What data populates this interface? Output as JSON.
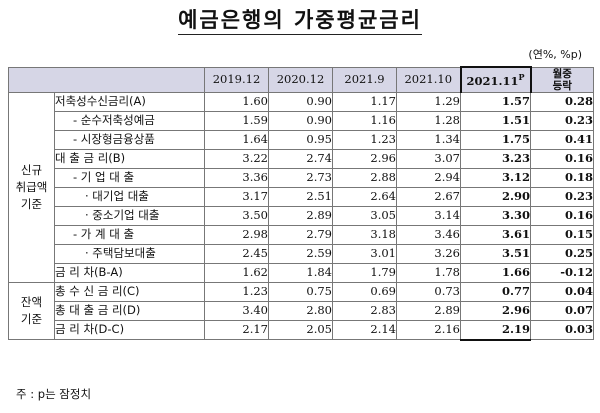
{
  "title": "예금은행의 가중평균금리",
  "unit": "(연%, %p)",
  "headers": {
    "c1": "2019.12",
    "c2": "2020.12",
    "c3": "2021.9",
    "c4": "2021.10",
    "c5": "2021.11",
    "c5_sup": "P",
    "change_line1": "월중",
    "change_line2": "등락"
  },
  "groups": {
    "new": [
      "신규",
      "취급액",
      "기준"
    ],
    "bal": [
      "잔액",
      "기준"
    ]
  },
  "rows": [
    {
      "label": "저축성수신금리(A)",
      "v": [
        "1.60",
        "0.90",
        "1.17",
        "1.29",
        "1.57",
        "0.28"
      ]
    },
    {
      "label": "- 순수저축성예금",
      "v": [
        "1.59",
        "0.90",
        "1.16",
        "1.28",
        "1.51",
        "0.23"
      ]
    },
    {
      "label": "- 시장형금융상품",
      "v": [
        "1.64",
        "0.95",
        "1.23",
        "1.34",
        "1.75",
        "0.41"
      ]
    },
    {
      "label": "대 출 금 리(B)",
      "v": [
        "3.22",
        "2.74",
        "2.96",
        "3.07",
        "3.23",
        "0.16"
      ]
    },
    {
      "label": "- 기 업 대 출",
      "v": [
        "3.36",
        "2.73",
        "2.88",
        "2.94",
        "3.12",
        "0.18"
      ]
    },
    {
      "label": "· 대기업 대출",
      "v": [
        "3.17",
        "2.51",
        "2.64",
        "2.67",
        "2.90",
        "0.23"
      ]
    },
    {
      "label": "· 중소기업 대출",
      "v": [
        "3.50",
        "2.89",
        "3.05",
        "3.14",
        "3.30",
        "0.16"
      ]
    },
    {
      "label": "- 가 계 대 출",
      "v": [
        "2.98",
        "2.79",
        "3.18",
        "3.46",
        "3.61",
        "0.15"
      ]
    },
    {
      "label": "· 주택담보대출",
      "v": [
        "2.45",
        "2.59",
        "3.01",
        "3.26",
        "3.51",
        "0.25"
      ]
    },
    {
      "label": "금 리 차(B-A)",
      "v": [
        "1.62",
        "1.84",
        "1.79",
        "1.78",
        "1.66",
        "-0.12"
      ]
    },
    {
      "label": "총 수 신 금 리(C)",
      "v": [
        "1.23",
        "0.75",
        "0.69",
        "0.73",
        "0.77",
        "0.04"
      ]
    },
    {
      "label": "총 대 출 금 리(D)",
      "v": [
        "3.40",
        "2.80",
        "2.83",
        "2.89",
        "2.96",
        "0.07"
      ]
    },
    {
      "label": "금 리 차(D-C)",
      "v": [
        "2.17",
        "2.05",
        "2.14",
        "2.16",
        "2.19",
        "0.03"
      ]
    }
  ],
  "note": "주 : p는 잠정치"
}
